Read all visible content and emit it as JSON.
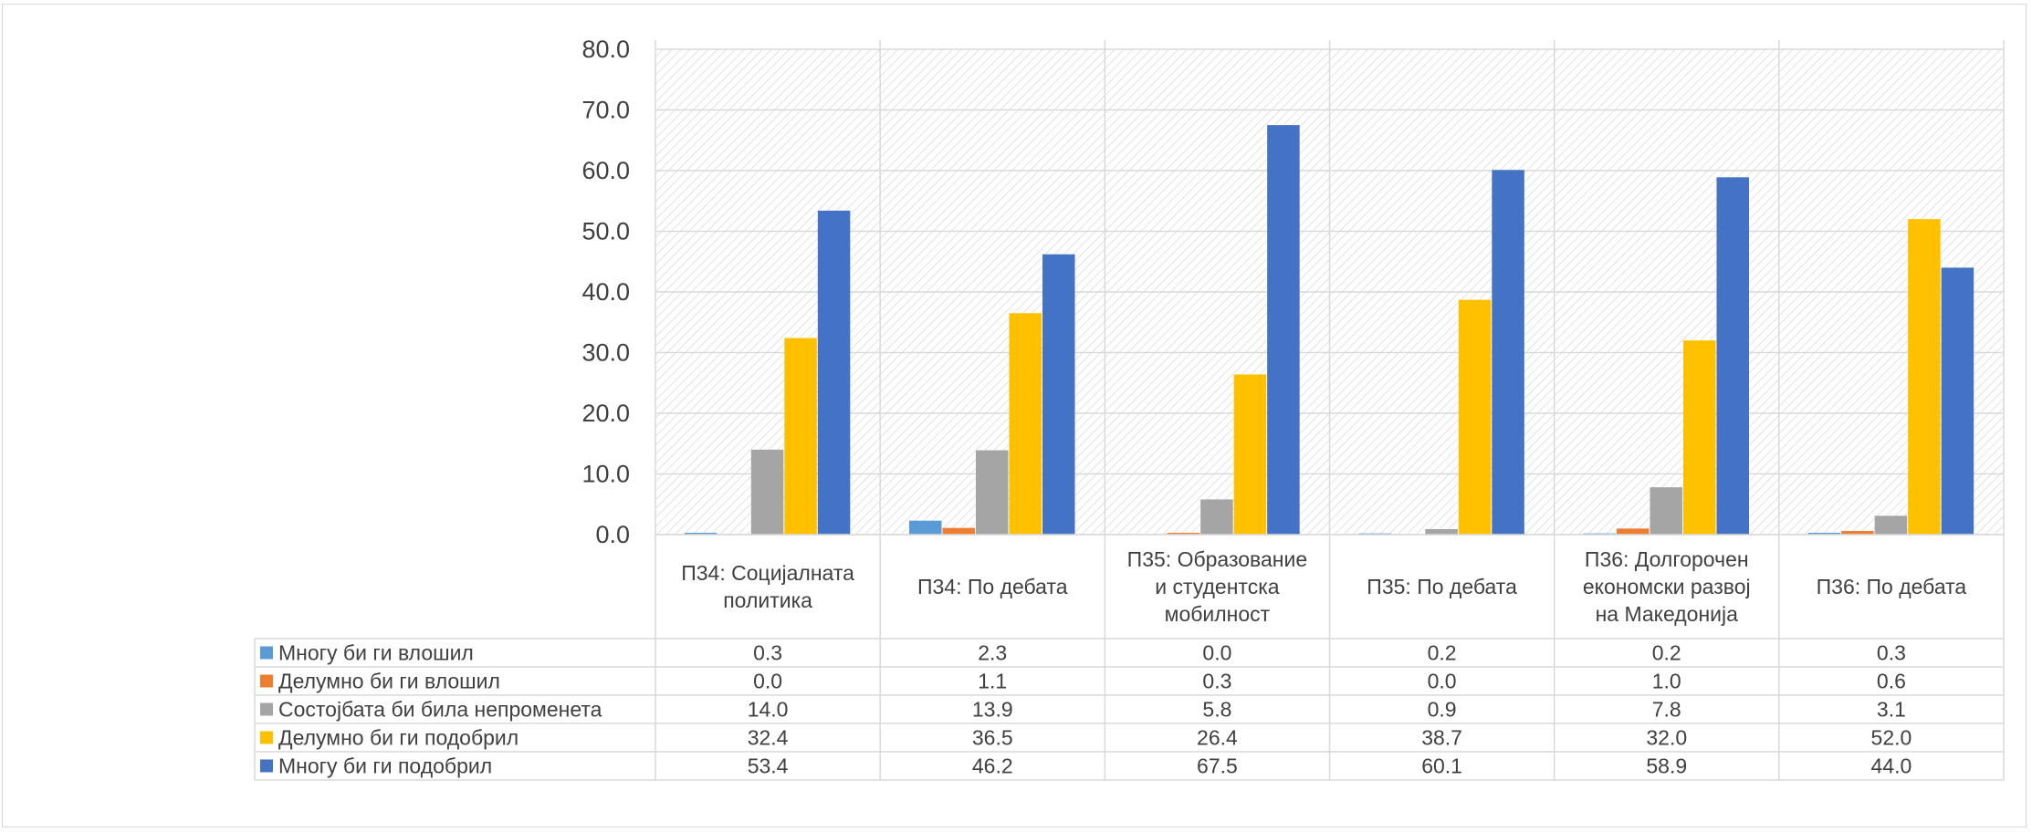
{
  "chart_data": {
    "type": "bar",
    "title": "",
    "xlabel": "",
    "ylabel": "",
    "ylim": [
      0,
      80
    ],
    "yticks": [
      "0.0",
      "10.0",
      "20.0",
      "30.0",
      "40.0",
      "50.0",
      "60.0",
      "70.0",
      "80.0"
    ],
    "grid": true,
    "legend": "data-table-left",
    "categories": [
      [
        "П34: Социјалната",
        "политика"
      ],
      [
        "П34: По дебата"
      ],
      [
        "П35: Образование",
        "и студентска",
        "мобилност"
      ],
      [
        "П35: По дебата"
      ],
      [
        "П36: Долгорочен",
        "економски развој",
        "на Македонија"
      ],
      [
        "П36: По дебата"
      ]
    ],
    "series": [
      {
        "name": "Многу би ги влошил",
        "color": "#5b9bd5",
        "values": [
          0.3,
          2.3,
          0.0,
          0.2,
          0.2,
          0.3
        ],
        "labels": [
          "0.3",
          "2.3",
          "0.0",
          "0.2",
          "0.2",
          "0.3"
        ]
      },
      {
        "name": "Делумно би ги влошил",
        "color": "#ed7d31",
        "values": [
          0.0,
          1.1,
          0.3,
          0.0,
          1.0,
          0.6
        ],
        "labels": [
          "0.0",
          "1.1",
          "0.3",
          "0.0",
          "1.0",
          "0.6"
        ]
      },
      {
        "name": "Состојбата би била непроменета",
        "color": "#a5a5a5",
        "values": [
          14.0,
          13.9,
          5.8,
          0.9,
          7.8,
          3.1
        ],
        "labels": [
          "14.0",
          "13.9",
          "5.8",
          "0.9",
          "7.8",
          "3.1"
        ]
      },
      {
        "name": "Делумно би ги подобрил",
        "color": "#ffc000",
        "values": [
          32.4,
          36.5,
          26.4,
          38.7,
          32.0,
          52.0
        ],
        "labels": [
          "32.4",
          "36.5",
          "26.4",
          "38.7",
          "32.0",
          "52.0"
        ]
      },
      {
        "name": "Многу би ги подобрил",
        "color": "#4472c4",
        "values": [
          53.4,
          46.2,
          67.5,
          60.1,
          58.9,
          44.0
        ],
        "labels": [
          "53.4",
          "46.2",
          "67.5",
          "60.1",
          "58.9",
          "44.0"
        ]
      }
    ]
  }
}
